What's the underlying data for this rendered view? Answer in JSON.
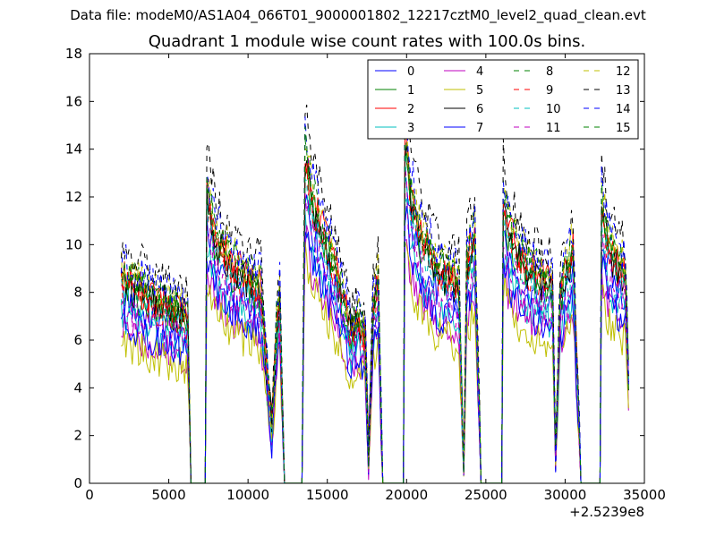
{
  "suptitle": "Data file: modeM0/AS1A04_066T01_9000001802_12217cztM0_level2_quad_clean.evt",
  "chart_data": {
    "type": "line",
    "title": "Quadrant 1 module wise count rates with 100.0s bins.",
    "xlabel": "",
    "ylabel": "",
    "x_offset_label": "+2.5239e8",
    "xlim": [
      0,
      35000
    ],
    "ylim": [
      0,
      18
    ],
    "xticks": [
      0,
      5000,
      10000,
      15000,
      20000,
      25000,
      30000,
      35000
    ],
    "xtick_labels": [
      "0",
      "5000",
      "10000",
      "15000",
      "20000",
      "25000",
      "30000",
      "35000"
    ],
    "yticks": [
      0,
      2,
      4,
      6,
      8,
      10,
      12,
      14,
      16,
      18
    ],
    "ytick_labels": [
      "0",
      "2",
      "4",
      "6",
      "8",
      "10",
      "12",
      "14",
      "16",
      "18"
    ],
    "legend_position": "top-right",
    "legend_columns": 4,
    "envelope": {
      "segments": [
        {
          "x": [
            2000,
            2400,
            3000,
            4000,
            5000,
            5600,
            6000,
            6200,
            6400
          ],
          "y": [
            8.3,
            8.2,
            7.8,
            7.4,
            7.1,
            6.9,
            6.8,
            6.6,
            0
          ]
        },
        {
          "x": [
            7300,
            7400,
            8000,
            9000,
            10000,
            10800,
            11200,
            11500,
            11800,
            12000,
            12300
          ],
          "y": [
            0,
            11.6,
            9.8,
            8.8,
            8.2,
            7.9,
            4.5,
            2.2,
            6.5,
            7.6,
            0
          ]
        },
        {
          "x": [
            13400,
            13600,
            14000,
            15000,
            16000,
            16500,
            17000,
            17400,
            17600,
            17900,
            18200,
            18500
          ],
          "y": [
            0,
            13.4,
            11.5,
            9.6,
            7.6,
            6.0,
            6.6,
            5.8,
            1.2,
            7.2,
            8.2,
            0
          ]
        },
        {
          "x": [
            19800,
            19900,
            20200,
            21000,
            22000,
            23000,
            23300,
            23600,
            23800,
            24300,
            24700
          ],
          "y": [
            0,
            14.0,
            11.8,
            9.7,
            8.6,
            8.2,
            8.0,
            0.4,
            9.0,
            10.0,
            0
          ]
        },
        {
          "x": [
            26000,
            26100,
            26500,
            27500,
            28500,
            29200,
            29400,
            29700,
            30000,
            30500,
            31000
          ],
          "y": [
            0,
            11.4,
            10.0,
            8.8,
            8.2,
            7.9,
            1.0,
            7.6,
            8.4,
            9.4,
            0
          ]
        },
        {
          "x": [
            32200,
            32300,
            32700,
            33300,
            33800,
            34000
          ],
          "y": [
            0,
            11.2,
            9.6,
            8.8,
            8.4,
            4.2
          ]
        }
      ]
    },
    "series": [
      {
        "name": "0",
        "color": "#0000ff",
        "dash": "solid",
        "scale": 0.93
      },
      {
        "name": "1",
        "color": "#008000",
        "dash": "solid",
        "scale": 1.0
      },
      {
        "name": "2",
        "color": "#ff0000",
        "dash": "solid",
        "scale": 1.05
      },
      {
        "name": "3",
        "color": "#00bfbf",
        "dash": "solid",
        "scale": 0.85
      },
      {
        "name": "4",
        "color": "#bf00bf",
        "dash": "solid",
        "scale": 0.78
      },
      {
        "name": "5",
        "color": "#bfbf00",
        "dash": "solid",
        "scale": 0.72
      },
      {
        "name": "6",
        "color": "#000000",
        "dash": "solid",
        "scale": 1.02
      },
      {
        "name": "7",
        "color": "#0000ff",
        "dash": "solid",
        "scale": 0.82
      },
      {
        "name": "8",
        "color": "#008000",
        "dash": "dashed",
        "scale": 1.08
      },
      {
        "name": "9",
        "color": "#ff0000",
        "dash": "dashed",
        "scale": 1.01
      },
      {
        "name": "10",
        "color": "#00bfbf",
        "dash": "dashed",
        "scale": 0.96
      },
      {
        "name": "11",
        "color": "#bf00bf",
        "dash": "dashed",
        "scale": 0.9
      },
      {
        "name": "12",
        "color": "#bfbf00",
        "dash": "dashed",
        "scale": 1.1
      },
      {
        "name": "13",
        "color": "#000000",
        "dash": "dashed",
        "scale": 1.2
      },
      {
        "name": "14",
        "color": "#0000ff",
        "dash": "dashed",
        "scale": 1.13
      },
      {
        "name": "15",
        "color": "#008000",
        "dash": "dashed",
        "scale": 1.06
      }
    ]
  }
}
